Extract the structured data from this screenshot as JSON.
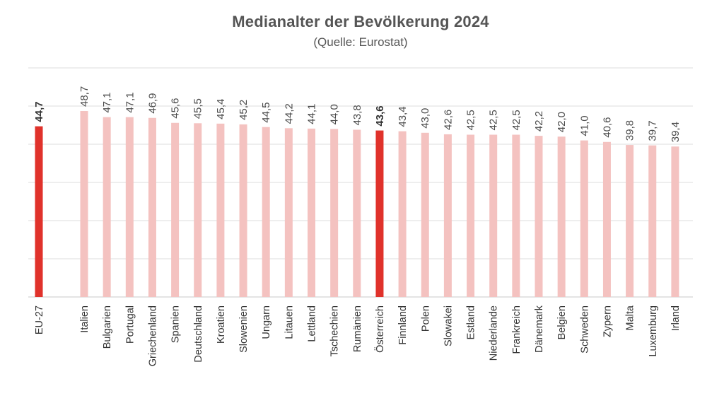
{
  "chart_data": {
    "type": "bar",
    "title": "Medianalter der Bevölkerung 2024",
    "subtitle": "(Quelle: Eurostat)",
    "xlabel": "",
    "ylabel": "",
    "ylim": [
      0,
      50
    ],
    "grid": true,
    "highlight_color": "#e0322b",
    "base_color": "#f4c2c0",
    "categories": [
      "EU-27",
      "Italien",
      "Bulgarien",
      "Portugal",
      "Griechenland",
      "Spanien",
      "Deutschland",
      "Kroatien",
      "Slowenien",
      "Ungarn",
      "Litauen",
      "Lettland",
      "Tschechien",
      "Rumänien",
      "Österreich",
      "Finnland",
      "Polen",
      "Slowakei",
      "Estland",
      "Niederlande",
      "Frankreich",
      "Dänemark",
      "Belgien",
      "Schweden",
      "Zypern",
      "Malta",
      "Luxemburg",
      "Irland"
    ],
    "values": [
      44.7,
      48.7,
      47.1,
      47.1,
      46.9,
      45.6,
      45.5,
      45.4,
      45.2,
      44.5,
      44.2,
      44.1,
      44.0,
      43.8,
      43.6,
      43.4,
      43.0,
      42.6,
      42.5,
      42.5,
      42.5,
      42.2,
      42.0,
      41.0,
      40.6,
      39.8,
      39.7,
      39.4
    ],
    "value_labels": [
      "44,7",
      "48,7",
      "47,1",
      "47,1",
      "46,9",
      "45,6",
      "45,5",
      "45,4",
      "45,2",
      "44,5",
      "44,2",
      "44,1",
      "44,0",
      "43,8",
      "43,6",
      "43,4",
      "43,0",
      "42,6",
      "42,5",
      "42,5",
      "42,5",
      "42,2",
      "42,0",
      "41,0",
      "40,6",
      "39,8",
      "39,7",
      "39,4"
    ],
    "highlighted": [
      "EU-27",
      "Österreich"
    ]
  }
}
